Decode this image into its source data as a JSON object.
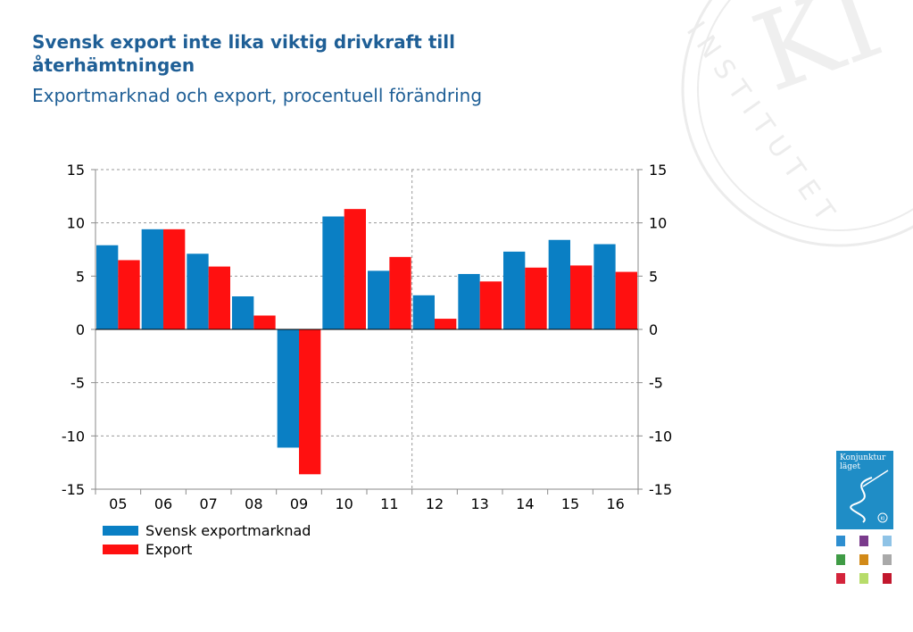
{
  "header": {
    "title": "Svensk export inte lika viktig drivkraft till återhämtningen",
    "subtitle": "Exportmarknad och export, procentuell förändring"
  },
  "watermark": {
    "text": "INSTITUTET",
    "monogram": "KI"
  },
  "cover": {
    "title_line1": "Konjunktur",
    "title_line2": "läget",
    "badge": "KI"
  },
  "thumbnail_colors": [
    "#2e8ed0",
    "#7a3b8c",
    "#8fc3e6",
    "#3f9b45",
    "#d28a18",
    "#a9a9a9",
    "#d4243b",
    "#b7dc6a",
    "#c2172d"
  ],
  "chart_data": {
    "type": "bar",
    "categories": [
      "05",
      "06",
      "07",
      "08",
      "09",
      "10",
      "11",
      "12",
      "13",
      "14",
      "15",
      "16"
    ],
    "series": [
      {
        "name": "Svensk exportmarknad",
        "color": "#0a7fc4",
        "values": [
          7.9,
          9.4,
          7.1,
          3.1,
          -11.1,
          10.6,
          5.5,
          3.2,
          5.2,
          7.3,
          8.4,
          8.0
        ]
      },
      {
        "name": "Export",
        "color": "#ff1010",
        "values": [
          6.5,
          9.4,
          5.9,
          1.3,
          -13.6,
          11.3,
          6.8,
          1.0,
          4.5,
          5.8,
          6.0,
          5.4
        ]
      }
    ],
    "yticks": [
      "15",
      "10",
      "5",
      "0",
      "-5",
      "-10",
      "-15"
    ],
    "ylim": [
      -15,
      15
    ],
    "forecast_divider_after": "11",
    "grid": true,
    "legend": "bottom-left"
  }
}
